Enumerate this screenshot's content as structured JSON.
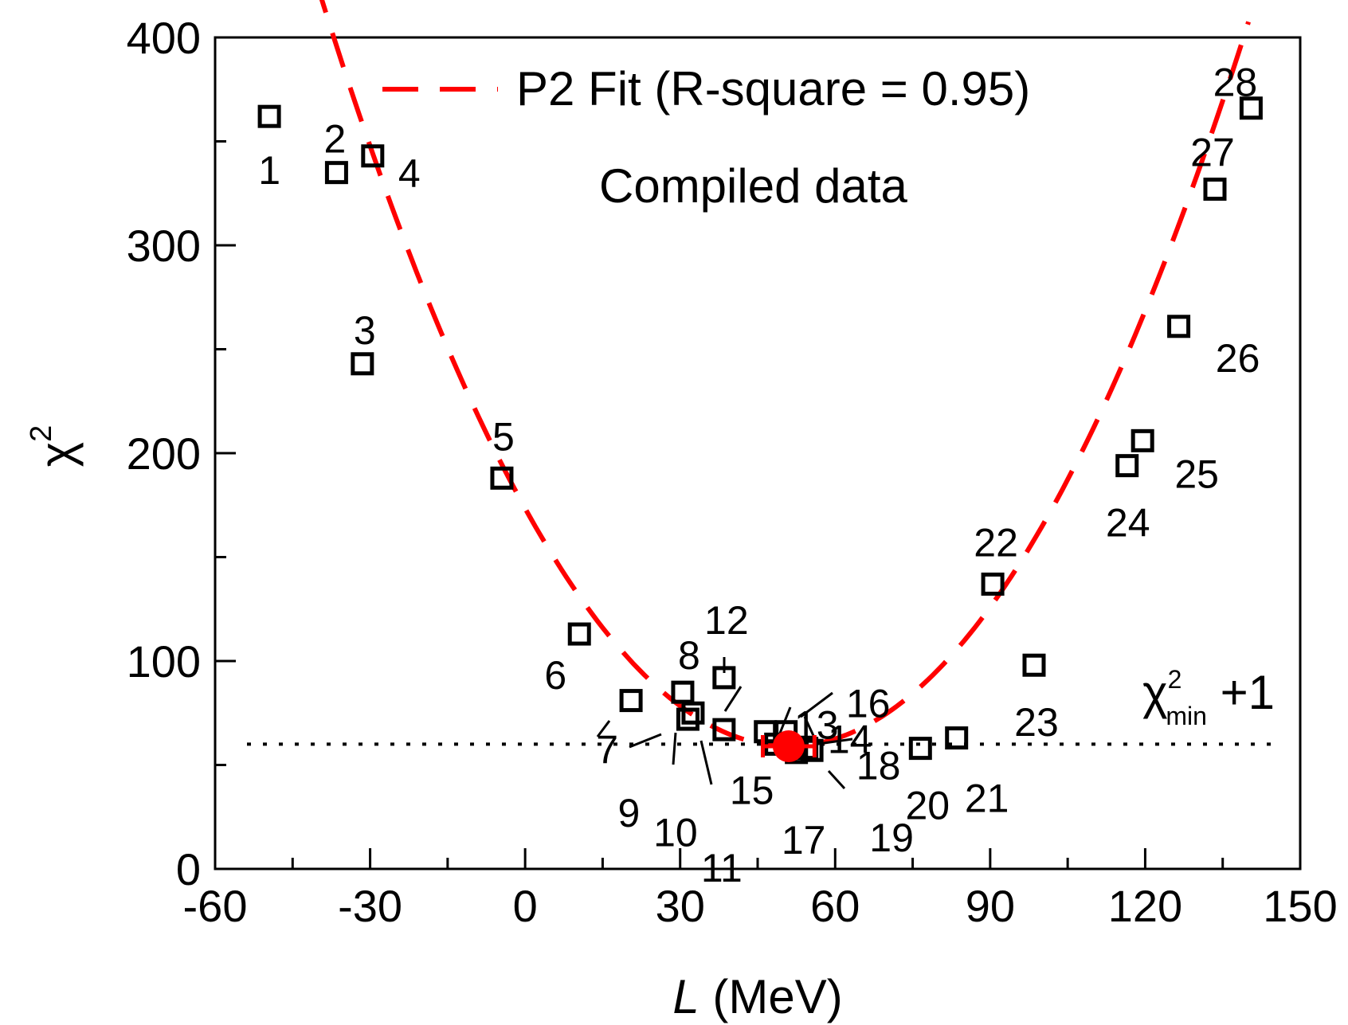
{
  "chart_data": {
    "type": "scatter",
    "xlabel_symbol": "L",
    "xlabel_unit": " (MeV)",
    "ylabel_base": "χ",
    "ylabel_sup": "2",
    "xlim": [
      -60,
      150
    ],
    "ylim": [
      0,
      400
    ],
    "xticks": [
      -60,
      -30,
      0,
      30,
      60,
      90,
      120,
      150
    ],
    "yticks": [
      0,
      100,
      200,
      300,
      400
    ],
    "grid": false,
    "legend": {
      "position": "top",
      "fit_label": "P2 Fit (R-square = 0.95)",
      "data_label": "Compiled data"
    },
    "threshold": {
      "y": 60,
      "label_base": "χ",
      "label_sup": "2",
      "label_sub": "min",
      "label_suffix": " +1"
    },
    "minimum_point": {
      "x": 51,
      "y": 59,
      "xerr": 5,
      "color": "#ff0000"
    },
    "fit": {
      "type": "quadratic",
      "x_range": [
        -50,
        140
      ],
      "color": "#ff0000"
    },
    "points": [
      {
        "id": "1",
        "x": -49.5,
        "y": 362
      },
      {
        "id": "2",
        "x": -36.5,
        "y": 335
      },
      {
        "id": "3",
        "x": -31.5,
        "y": 243
      },
      {
        "id": "4",
        "x": -29.5,
        "y": 343
      },
      {
        "id": "5",
        "x": -4.5,
        "y": 188
      },
      {
        "id": "6",
        "x": 10.5,
        "y": 113
      },
      {
        "id": "7",
        "x": 20.5,
        "y": 81
      },
      {
        "id": "8",
        "x": 30.5,
        "y": 85
      },
      {
        "id": "9",
        "x": 31.5,
        "y": 72
      },
      {
        "id": "10",
        "x": 32.5,
        "y": 75
      },
      {
        "id": "11",
        "x": 38.5,
        "y": 67
      },
      {
        "id": "12",
        "x": 38.5,
        "y": 92
      },
      {
        "id": "13",
        "x": 46.5,
        "y": 66
      },
      {
        "id": "14",
        "x": 50.5,
        "y": 66
      },
      {
        "id": "15",
        "x": 48.5,
        "y": 60
      },
      {
        "id": "16",
        "x": 52.5,
        "y": 58
      },
      {
        "id": "17",
        "x": 52.5,
        "y": 56
      },
      {
        "id": "18",
        "x": 54.5,
        "y": 58
      },
      {
        "id": "19",
        "x": 55.5,
        "y": 57
      },
      {
        "id": "20",
        "x": 76.5,
        "y": 58
      },
      {
        "id": "21",
        "x": 83.5,
        "y": 63
      },
      {
        "id": "22",
        "x": 90.5,
        "y": 137
      },
      {
        "id": "23",
        "x": 98.5,
        "y": 98
      },
      {
        "id": "24",
        "x": 116.5,
        "y": 194
      },
      {
        "id": "25",
        "x": 119.5,
        "y": 206
      },
      {
        "id": "26",
        "x": 126.5,
        "y": 261
      },
      {
        "id": "27",
        "x": 133.5,
        "y": 327
      },
      {
        "id": "28",
        "x": 140.5,
        "y": 366
      }
    ]
  }
}
